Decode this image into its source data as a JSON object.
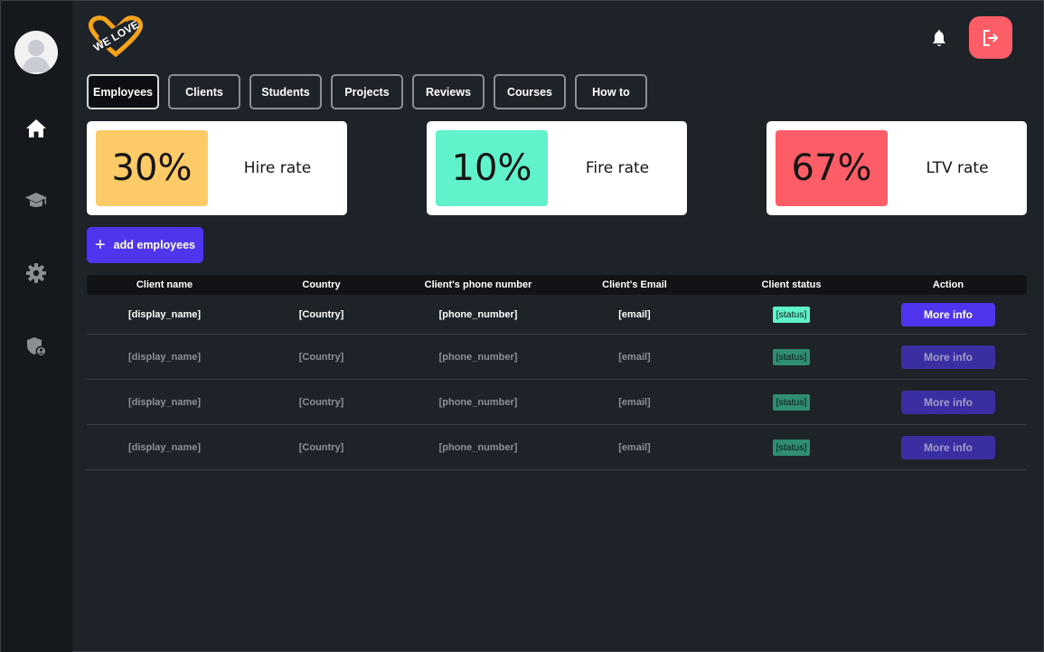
{
  "header": {
    "logo_text": "WE LOVE"
  },
  "sidebar": {
    "items": [
      {
        "icon": "home-icon"
      },
      {
        "icon": "graduation-cap-icon"
      },
      {
        "icon": "gear-icon"
      },
      {
        "icon": "shield-user-icon"
      }
    ]
  },
  "tabs": [
    {
      "label": "Employees",
      "active": true
    },
    {
      "label": "Clients"
    },
    {
      "label": "Students"
    },
    {
      "label": "Projects"
    },
    {
      "label": "Reviews"
    },
    {
      "label": "Courses"
    },
    {
      "label": "How to"
    }
  ],
  "stats": [
    {
      "value": "30%",
      "label": "Hire rate",
      "color": "#fdca68"
    },
    {
      "value": "10%",
      "label": "Fire rate",
      "color": "#60f2cb"
    },
    {
      "value": "67%",
      "label": "LTV rate",
      "color": "#fd5d67"
    }
  ],
  "add_button": {
    "label": "add employees"
  },
  "table": {
    "headers": [
      "Client name",
      "Country",
      "Client's phone number",
      "Client's Email",
      "Client status",
      "Action"
    ],
    "rows": [
      {
        "name": "[display_name]",
        "country": "[Country]",
        "phone": "[phone_number]",
        "email": "[email]",
        "status": "[status]",
        "action": "More info"
      },
      {
        "name": "[display_name]",
        "country": "[Country]",
        "phone": "[phone_number]",
        "email": "[email]",
        "status": "[status]",
        "action": "More info"
      },
      {
        "name": "[display_name]",
        "country": "[Country]",
        "phone": "[phone_number]",
        "email": "[email]",
        "status": "[status]",
        "action": "More info"
      },
      {
        "name": "[display_name]",
        "country": "[Country]",
        "phone": "[phone_number]",
        "email": "[email]",
        "status": "[status]",
        "action": "More info"
      }
    ]
  },
  "colors": {
    "accent": "#4f36ee",
    "logout": "#fd5d67",
    "sidebar_bg": "#15181d",
    "page_bg": "#1e2229"
  }
}
